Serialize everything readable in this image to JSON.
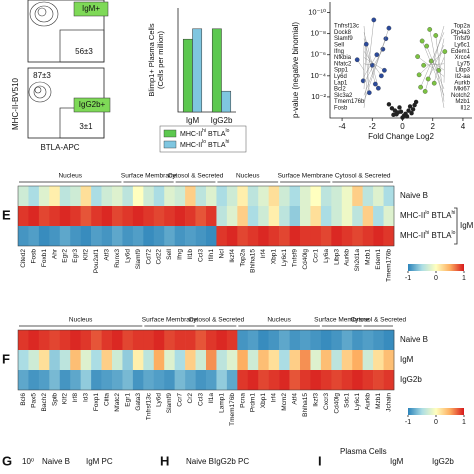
{
  "flow": {
    "gates": [
      "IgM+",
      "IgG2b+"
    ],
    "frequencies": [
      "56±3",
      "87±3",
      "3±1"
    ],
    "y_label": "MHC-II-BV510",
    "x_label": "BTLA-APC"
  },
  "chart_data": {
    "type": "bar",
    "y_label": [
      "Blimp1+ Plasma Cells",
      "(Cells per million)"
    ],
    "categories": [
      "IgM",
      "IgG2b"
    ],
    "ylim": [
      0,
      30
    ],
    "series": [
      {
        "name": [
          "MHC-II",
          "hi",
          " BTLA",
          "lo"
        ],
        "color": "#5cc84f",
        "values": [
          21,
          24
        ]
      },
      {
        "name": [
          "MHC-II",
          "lo",
          " BTLA",
          "hi"
        ],
        "color": "#7fc6e0",
        "values": [
          24,
          6
        ]
      }
    ]
  },
  "volcano": {
    "type": "scatter",
    "x_label": "Fold Change Log2",
    "y_label": "p-value (negative binomial)",
    "xlim": [
      -4.8,
      4.6
    ],
    "ylim": [
      1,
      1e-11
    ],
    "log_y": true,
    "xticks": [
      -4,
      -2,
      0,
      2,
      4
    ],
    "yticks": [
      {
        "value": 0.01,
        "label": "10⁻²"
      },
      {
        "value": 0.0001,
        "label": "10⁻⁴"
      },
      {
        "value": 1e-06,
        "label": "10⁻⁶"
      },
      {
        "value": 1e-08,
        "label": "10⁻⁸"
      },
      {
        "value": 1e-10,
        "label": "10⁻¹⁰"
      }
    ],
    "down": {
      "color": "#2b4a9b",
      "points": [
        {
          "label": "Tnfrsf13c",
          "x": -2.2,
          "p": 0.004
        },
        {
          "label": "Dock8",
          "x": -1.6,
          "p": 0.0015
        },
        {
          "label": "Slamf9",
          "x": -1.8,
          "p": 0.0006
        },
        {
          "label": "Sell",
          "x": -2.6,
          "p": 0.0003
        },
        {
          "label": "Ifng",
          "x": -1.4,
          "p": 0.0001
        },
        {
          "label": "Nfkbia",
          "x": -1.2,
          "p": 3e-05
        },
        {
          "label": "Nfatc2",
          "x": -2.0,
          "p": 1e-05
        },
        {
          "label": "Spp1",
          "x": -3.0,
          "p": 3e-06
        },
        {
          "label": "Ly6d",
          "x": -1.7,
          "p": 1e-06
        },
        {
          "label": "Lap1",
          "x": -1.3,
          "p": 3e-07
        },
        {
          "label": "Bcl2",
          "x": -2.4,
          "p": 1e-07
        },
        {
          "label": "Slc3a2",
          "x": -1.1,
          "p": 3e-08
        },
        {
          "label": "Tmem176b",
          "x": -0.9,
          "p": 3e-09
        },
        {
          "label": "Fosb",
          "x": -1.9,
          "p": 5e-10
        }
      ]
    },
    "up": {
      "color": "#7cc242",
      "points": [
        {
          "label": "Top2a",
          "x": 1.5,
          "p": 0.003
        },
        {
          "label": "Ptp4a3",
          "x": 1.2,
          "p": 0.0012
        },
        {
          "label": "Tnfsf9",
          "x": 2.1,
          "p": 0.0005
        },
        {
          "label": "Ly6c1",
          "x": 1.7,
          "p": 0.0002
        },
        {
          "label": "Edem1",
          "x": 1.1,
          "p": 8e-05
        },
        {
          "label": "Xrcc4",
          "x": 2.4,
          "p": 3e-05
        },
        {
          "label": "Ly75",
          "x": 1.4,
          "p": 1e-05
        },
        {
          "label": "Libp3",
          "x": 1.9,
          "p": 4e-06
        },
        {
          "label": "Il2-aa",
          "x": 1.0,
          "p": 1.5e-06
        },
        {
          "label": "Aurkb",
          "x": 2.8,
          "p": 5e-07
        },
        {
          "label": "Mki67",
          "x": 1.6,
          "p": 1.5e-07
        },
        {
          "label": "Notch2",
          "x": 1.3,
          "p": 5e-08
        },
        {
          "label": "Mzb1",
          "x": 2.2,
          "p": 1.5e-08
        },
        {
          "label": "Il12",
          "x": 1.8,
          "p": 4e-09
        }
      ]
    },
    "other": {
      "color": "#222222",
      "x": [
        -0.6,
        -0.3,
        0.1,
        0.4,
        0.7,
        -0.9,
        0.2,
        0.5,
        -0.2,
        0.9,
        -0.5,
        0.3,
        0.0,
        -0.1,
        0.6,
        -0.7,
        0.8,
        -0.4
      ],
      "p": [
        0.5,
        0.3,
        0.6,
        0.2,
        0.15,
        0.05,
        0.4,
        0.08,
        0.1,
        0.03,
        0.2,
        0.7,
        0.9,
        0.25,
        0.35,
        0.12,
        0.06,
        0.45
      ]
    }
  },
  "heatmap_e": {
    "letter": "E",
    "colors": [
      "#2b83ba",
      "#abdde4",
      "#ffffbf",
      "#fdae61",
      "#d7191c"
    ],
    "scale": [
      -1,
      1
    ],
    "ticks": [
      -1,
      0,
      1
    ],
    "group_label": "IgM",
    "sections": [
      {
        "label": "Nucleus",
        "genes": [
          "Cited2",
          "Fosb",
          "Foxb1",
          "Ahr",
          "Egr2",
          "Egr3",
          "Klf2",
          "Pou2af1",
          "Atf3",
          "Runx3"
        ]
      },
      {
        "label": "Surface Membrane",
        "genes": [
          "Ly6d",
          "Slamf9",
          "Cd72",
          "Cd22",
          "Sell"
        ]
      },
      {
        "label": "Cytosol & Secreted",
        "genes": [
          "Ifng",
          "Il1b",
          "Ccl3",
          "Ifih1"
        ]
      },
      {
        "label": "Nucleus",
        "genes": [
          "Ncl",
          "Ikzf4",
          "Top2a",
          "Bhlha15",
          "Irf4",
          "Xbp1"
        ]
      },
      {
        "label": "Surface Membrane",
        "genes": [
          "Ly6c1",
          "Tnfsf9",
          "Cd40lg",
          "Ccr1",
          "Ly6a"
        ]
      },
      {
        "label": "Cytosol & Secreted",
        "genes": [
          "Libp3",
          "Aurkb",
          "Sh2d1a",
          "Mzb1",
          "Edem1",
          "Tmem176b"
        ]
      }
    ],
    "rows": [
      {
        "label_parts": [
          "Naive B"
        ],
        "values": [
          -0.3,
          -0.5,
          -0.2,
          0.1,
          -0.4,
          -0.3,
          0.2,
          -0.5,
          -0.3,
          -0.2,
          -0.4,
          0.0,
          -0.3,
          -0.5,
          -0.2,
          -0.3,
          0.3,
          -0.4,
          -0.2,
          -0.5,
          -0.3,
          0.1,
          -0.4,
          -0.2,
          0.2,
          -0.3,
          -0.5,
          -0.2,
          0.0,
          -0.4,
          -0.3,
          -0.1,
          0.3,
          -0.4,
          -0.2,
          -0.5
        ]
      },
      {
        "label_parts": [
          "MHC-II",
          "lo",
          " BTLA",
          "hi"
        ],
        "values": [
          0.9,
          0.95,
          0.85,
          0.9,
          0.95,
          0.9,
          0.8,
          0.9,
          0.95,
          0.85,
          0.9,
          0.95,
          0.9,
          0.85,
          0.9,
          0.95,
          0.9,
          0.8,
          0.9,
          -0.4,
          -0.2,
          0.3,
          -0.5,
          -0.3,
          0.1,
          -0.4,
          -0.6,
          -0.2,
          0.2,
          -0.5,
          -0.3,
          -0.1,
          -0.4,
          0.3,
          -0.5,
          -0.2
        ]
      },
      {
        "label_parts": [
          "MHC-II",
          "hi",
          " BTLA",
          "lo"
        ],
        "values": [
          -0.9,
          -0.85,
          -0.95,
          -0.9,
          -0.8,
          -0.9,
          -0.95,
          -0.85,
          -0.9,
          -0.8,
          -0.9,
          -0.85,
          -0.95,
          -0.9,
          -0.8,
          -0.9,
          -0.85,
          -0.9,
          -0.95,
          0.9,
          0.95,
          0.85,
          0.9,
          0.95,
          0.9,
          0.85,
          0.95,
          0.9,
          0.9,
          0.85,
          0.95,
          0.9,
          0.85,
          0.9,
          0.95,
          0.9
        ]
      }
    ]
  },
  "heatmap_f": {
    "letter": "F",
    "colors": [
      "#2b83ba",
      "#abdde4",
      "#ffffbf",
      "#fdae61",
      "#d7191c"
    ],
    "scale": [
      -1,
      1
    ],
    "ticks": [
      -1,
      0,
      1
    ],
    "sections": [
      {
        "label": "Nucleus",
        "genes": [
          "Bcl6",
          "Pax5",
          "Bach2",
          "Spib",
          "Klf2",
          "Irf8",
          "Id3",
          "Foxp1",
          "Ciita",
          "Nfatc2",
          "Egr1",
          "Gata3"
        ]
      },
      {
        "label": "Surface Membrane",
        "genes": [
          "Tnfrsf13c",
          "Ly6d",
          "Slamf9",
          "Ccr7",
          "Cr2"
        ]
      },
      {
        "label": "Cytosol & Secreted",
        "genes": [
          "Ccl3",
          "Il1a",
          "Lamp1",
          "Tmem176b"
        ]
      },
      {
        "label": "Nucleus",
        "genes": [
          "Pcna",
          "Prdm1",
          "Xbp1",
          "Irf4",
          "Mcm2",
          "Atf4",
          "Bhlha15",
          "Ikzf3"
        ]
      },
      {
        "label": "Surface Membrane",
        "genes": [
          "Cxcr3",
          "Cd40lg",
          "Sdc1",
          "Ly6c1"
        ]
      },
      {
        "label": "Cytosol & Secreted",
        "genes": [
          "Aurkb",
          "Mzb1",
          "Jchain"
        ]
      }
    ],
    "rows": [
      {
        "label_parts": [
          "Naive B"
        ],
        "values": [
          0.9,
          0.95,
          0.9,
          0.85,
          0.9,
          0.95,
          0.9,
          0.8,
          0.9,
          0.95,
          0.85,
          0.9,
          0.9,
          0.95,
          0.85,
          0.9,
          0.9,
          0.8,
          0.9,
          0.95,
          0.9,
          -0.9,
          -0.85,
          -0.95,
          -0.9,
          -0.8,
          -0.9,
          -0.85,
          -0.9,
          -0.95,
          -0.9,
          -0.8,
          -0.9,
          -0.85,
          -0.9,
          -0.95
        ]
      },
      {
        "label_parts": [
          "IgM"
        ],
        "values": [
          -0.5,
          -0.3,
          0.2,
          -0.6,
          -0.4,
          0.4,
          -0.2,
          -0.5,
          0.3,
          -0.3,
          -0.6,
          0.1,
          -0.4,
          0.5,
          -0.2,
          -0.5,
          0.3,
          -0.3,
          0.6,
          -0.4,
          -0.2,
          0.5,
          -0.3,
          0.4,
          0.2,
          -0.5,
          0.3,
          0.6,
          -0.2,
          0.4,
          -0.4,
          0.3,
          0.5,
          -0.3,
          0.2,
          0.4
        ]
      },
      {
        "label_parts": [
          "IgG2b"
        ],
        "values": [
          -0.8,
          -0.9,
          -0.85,
          -0.7,
          -0.9,
          -0.8,
          -0.6,
          -0.9,
          -0.85,
          -0.8,
          -0.7,
          -0.9,
          -0.8,
          -0.85,
          -0.9,
          -0.7,
          -0.8,
          -0.9,
          -0.85,
          -0.6,
          -0.8,
          0.9,
          0.95,
          0.85,
          0.9,
          0.95,
          0.8,
          0.9,
          0.95,
          0.9,
          0.85,
          0.9,
          0.95,
          0.9,
          0.85,
          0.9
        ]
      }
    ]
  },
  "bottom_panels": [
    {
      "letter": "G",
      "texts": [
        "10⁰",
        "Naive B",
        "IgM PC"
      ]
    },
    {
      "letter": "H",
      "texts": [
        "Naive B",
        "IgG2b PC"
      ]
    },
    {
      "letter": "I",
      "texts": [
        "Plasma Cells",
        "IgM",
        "IgG2b"
      ]
    }
  ]
}
